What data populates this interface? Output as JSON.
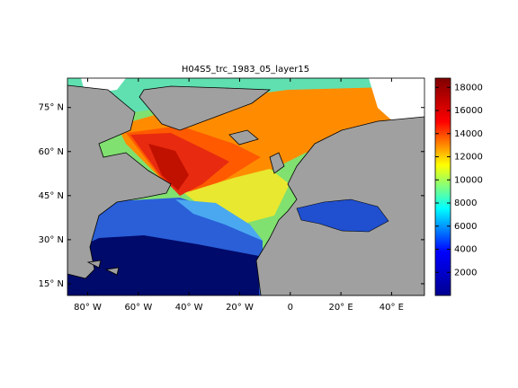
{
  "chart_data": {
    "type": "map",
    "title": "H04S5_trc_1983_05_layer15",
    "xlim": [
      -88,
      53
    ],
    "ylim": [
      11,
      85
    ],
    "xticks": [
      {
        "value": -80,
        "label": "80° W"
      },
      {
        "value": -60,
        "label": "60° W"
      },
      {
        "value": -40,
        "label": "40° W"
      },
      {
        "value": -20,
        "label": "20° W"
      },
      0,
      {
        "value": 20,
        "label": "20° E"
      },
      {
        "value": 40,
        "label": "40° E"
      }
    ],
    "yticks": [
      {
        "value": 15,
        "label": "15° N"
      },
      {
        "value": 30,
        "label": "30° N"
      },
      {
        "value": 45,
        "label": "45° N"
      },
      {
        "value": 60,
        "label": "60° N"
      },
      {
        "value": 75,
        "label": "75° N"
      }
    ],
    "clim": [
      0,
      18800
    ],
    "cticks": [
      2000,
      4000,
      6000,
      8000,
      10000,
      12000,
      14000,
      16000,
      18000
    ],
    "colormap": [
      "#00008f",
      "#0000ff",
      "#00ffff",
      "#ffff00",
      "#ff0000",
      "#800000"
    ]
  }
}
